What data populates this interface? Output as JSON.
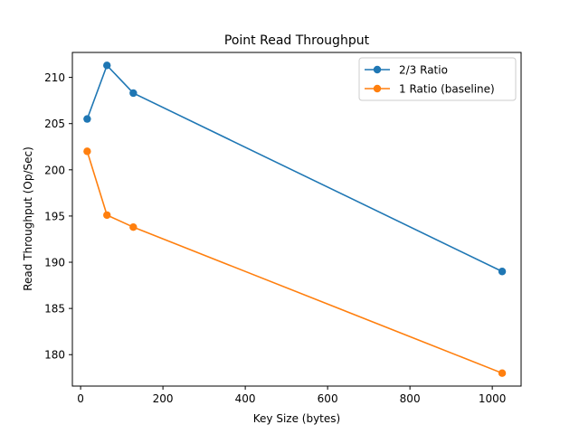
{
  "chart_data": {
    "type": "line",
    "title": "Point Read Throughput",
    "xlabel": "Key Size (bytes)",
    "ylabel": "Read Throughput (Op/Sec)",
    "xlim": [
      -20,
      1070
    ],
    "ylim": [
      176.6,
      212.7
    ],
    "xticks": [
      0,
      200,
      400,
      600,
      800,
      1000
    ],
    "yticks": [
      180,
      185,
      190,
      195,
      200,
      205,
      210
    ],
    "xtick_labels": [
      "0",
      "200",
      "400",
      "600",
      "800",
      "1000"
    ],
    "ytick_labels": [
      "180",
      "185",
      "190",
      "195",
      "200",
      "205",
      "210"
    ],
    "grid": false,
    "legend_position": "top-right",
    "series": [
      {
        "name": "2/3 Ratio",
        "color": "#1f77b4",
        "marker": "circle",
        "x": [
          16,
          64,
          128,
          1024
        ],
        "y": [
          205.5,
          211.3,
          208.3,
          189.0
        ]
      },
      {
        "name": "1 Ratio (baseline)",
        "color": "#ff7f0e",
        "marker": "circle",
        "x": [
          16,
          64,
          128,
          1024
        ],
        "y": [
          202.0,
          195.1,
          193.8,
          178.0
        ]
      }
    ]
  }
}
